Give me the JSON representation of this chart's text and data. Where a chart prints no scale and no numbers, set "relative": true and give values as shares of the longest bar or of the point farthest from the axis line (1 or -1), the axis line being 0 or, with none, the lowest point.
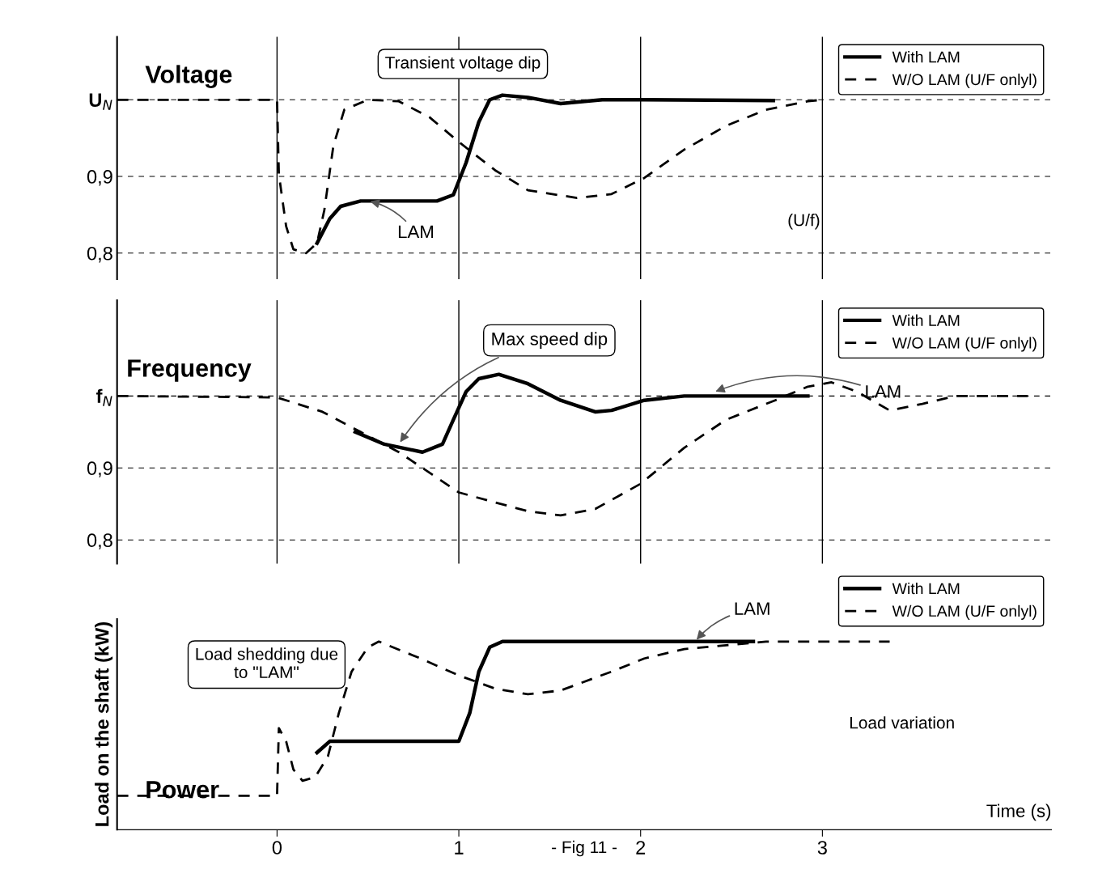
{
  "chart_data": [
    {
      "type": "line",
      "title": "Voltage",
      "xlim": [
        -0.88,
        4.26
      ],
      "xticks": [
        0,
        1,
        2,
        3
      ],
      "ylim": [
        0.766,
        1.082
      ],
      "yticks": [
        {
          "value": 1.0,
          "label": "U$_{N}$"
        },
        {
          "value": 0.9,
          "label": "0,9"
        },
        {
          "value": 0.8,
          "label": "0,8"
        }
      ],
      "tick_labels": "y",
      "grid": true,
      "legend": "top right",
      "series": [
        {
          "name": "With LAM",
          "color": "#000000",
          "line_style": "solid",
          "x": [
            0.22,
            0.29,
            0.35,
            0.46,
            0.67,
            0.88,
            0.97,
            1.04,
            1.11,
            1.17,
            1.24,
            1.38,
            1.56,
            1.79,
            2.02,
            2.73
          ],
          "values": [
            0.813,
            0.845,
            0.861,
            0.868,
            0.868,
            0.868,
            0.876,
            0.918,
            0.971,
            1.0,
            1.006,
            1.003,
            0.995,
            1.0,
            1.0,
            0.999
          ]
        },
        {
          "name": "W/O LAM (U/F onlyl)",
          "color": "#000000",
          "line_style": "dashed",
          "x": [
            -0.88,
            0.0,
            0.01,
            0.05,
            0.09,
            0.16,
            0.22,
            0.26,
            0.31,
            0.37,
            0.5,
            0.67,
            0.84,
            1.0,
            1.2,
            1.38,
            1.65,
            1.84,
            2.02,
            2.24,
            2.47,
            2.69,
            2.92,
            3.0
          ],
          "values": [
            1.0,
            1.0,
            0.903,
            0.835,
            0.805,
            0.8,
            0.813,
            0.856,
            0.94,
            0.987,
            1.0,
            0.998,
            0.977,
            0.945,
            0.908,
            0.882,
            0.872,
            0.877,
            0.898,
            0.935,
            0.966,
            0.987,
            0.998,
            1.0
          ]
        }
      ],
      "annotations": [
        "Transient voltage dip",
        {
          "text": "LAM",
          "x": 0.5,
          "y": 0.868
        },
        "(U/f)"
      ]
    },
    {
      "type": "line",
      "title": "Frequency",
      "xlim": [
        -0.88,
        4.26
      ],
      "xticks": [
        0,
        1,
        2,
        3
      ],
      "ylim": [
        0.767,
        1.133
      ],
      "yticks": [
        {
          "value": 1.0,
          "label": "f$_{N}$"
        },
        {
          "value": 0.9,
          "label": "0,9"
        },
        {
          "value": 0.8,
          "label": "0,8"
        }
      ],
      "tick_labels": "y",
      "grid": true,
      "legend": "top right",
      "series": [
        {
          "name": "With LAM",
          "color": "#000000",
          "line_style": "solid",
          "x": [
            0.43,
            0.59,
            0.8,
            0.91,
            0.97,
            1.04,
            1.11,
            1.22,
            1.38,
            1.56,
            1.75,
            1.84,
            2.02,
            2.24,
            2.92
          ],
          "values": [
            0.95,
            0.933,
            0.922,
            0.933,
            0.967,
            1.006,
            1.024,
            1.03,
            1.017,
            0.994,
            0.978,
            0.98,
            0.994,
            1.0,
            1.0
          ]
        },
        {
          "name": "W/O LAM (U/F onlyl)",
          "color": "#000000",
          "line_style": "dashed",
          "x": [
            -0.88,
            0.0,
            0.25,
            0.46,
            0.67,
            1.0,
            1.2,
            1.38,
            1.56,
            1.75,
            2.0,
            2.24,
            2.47,
            2.74,
            2.92,
            3.05,
            3.19,
            3.37,
            3.55,
            3.73,
            4.13
          ],
          "values": [
            1.0,
            0.998,
            0.978,
            0.95,
            0.922,
            0.866,
            0.852,
            0.84,
            0.834,
            0.843,
            0.878,
            0.928,
            0.967,
            0.994,
            1.013,
            1.019,
            1.006,
            0.98,
            0.989,
            1.0,
            1.0
          ]
        }
      ],
      "annotations": [
        {
          "text": "Max speed dip",
          "x": 0.67,
          "y": 0.933
        },
        {
          "text": "LAM",
          "x": 2.4,
          "y": 1.005
        }
      ]
    },
    {
      "type": "line",
      "title": "Power",
      "ylabel": "Load on the shaft (kW)",
      "xlabel": "Time (s)",
      "relative": true,
      "xlim": [
        -0.88,
        4.26
      ],
      "xticks": [
        0,
        1,
        2,
        3
      ],
      "tick_labels": "x",
      "grid": false,
      "legend": "top right",
      "series": [
        {
          "name": "With LAM",
          "color": "#000000",
          "line_style": "solid",
          "x": [
            0.22,
            0.29,
            0.46,
            1.0,
            1.06,
            1.11,
            1.17,
            1.24,
            2.62
          ],
          "values": [
            0.41,
            0.47,
            0.47,
            0.47,
            0.62,
            0.84,
            0.97,
            1.0,
            1.0
          ]
        },
        {
          "name": "W/O LAM (U/F onlyl)",
          "color": "#000000",
          "line_style": "dashed",
          "x": [
            -0.88,
            0.0,
            0.01,
            0.05,
            0.09,
            0.14,
            0.21,
            0.28,
            0.34,
            0.41,
            0.5,
            0.56,
            0.79,
            1.0,
            1.2,
            1.38,
            1.56,
            1.84,
            2.02,
            2.24,
            2.69,
            3.0,
            3.37
          ],
          "values": [
            0.18,
            0.18,
            0.54,
            0.47,
            0.32,
            0.26,
            0.28,
            0.39,
            0.62,
            0.84,
            0.97,
            1.0,
            0.91,
            0.82,
            0.75,
            0.72,
            0.74,
            0.84,
            0.91,
            0.96,
            1.0,
            1.0,
            1.0
          ]
        }
      ],
      "annotations": [
        "Load shedding due\nto \"LAM\"",
        {
          "text": "LAM",
          "x": 2.3,
          "y": 1.0
        },
        "Load variation",
        "- Fig 11 -"
      ]
    }
  ]
}
